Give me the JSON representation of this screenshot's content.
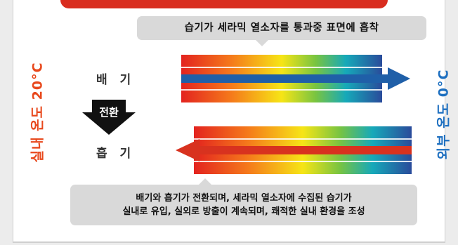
{
  "diagram": {
    "top_caption": "습기가 세라믹 열소자를 통과중 표면에 흡착",
    "bottom_caption_line1": "배기와 흡기가 전환되며, 세라믹 열소자에 수집된 습기가",
    "bottom_caption_line2": "실내로 유입, 실외로 방출이 계속되며, 쾌적한 실내 환경을 조성",
    "left_label": "실내 온도 20°C",
    "right_label": "외부 온도 0°C",
    "exhaust_label": "배 기",
    "intake_label": "흡 기",
    "switch_label": "전환"
  },
  "colors": {
    "indoor_text": "#e8481c",
    "outdoor_text": "#1d6fc0",
    "top_bar": "#d92d1f",
    "caption_bg": "#d9d9d9",
    "exhaust_arrow": "#1f5fa8",
    "intake_arrow": "#d8321f",
    "switch_arrow": "#111111",
    "gradient_stops": [
      "#e3231f",
      "#f57a1b",
      "#f6e516",
      "#78c441",
      "#16a9b9",
      "#2a4b9b"
    ]
  },
  "icons": {
    "exhaust_arrow": "right-arrow",
    "intake_arrow": "left-arrow",
    "switch_arrow": "down-arrow"
  }
}
